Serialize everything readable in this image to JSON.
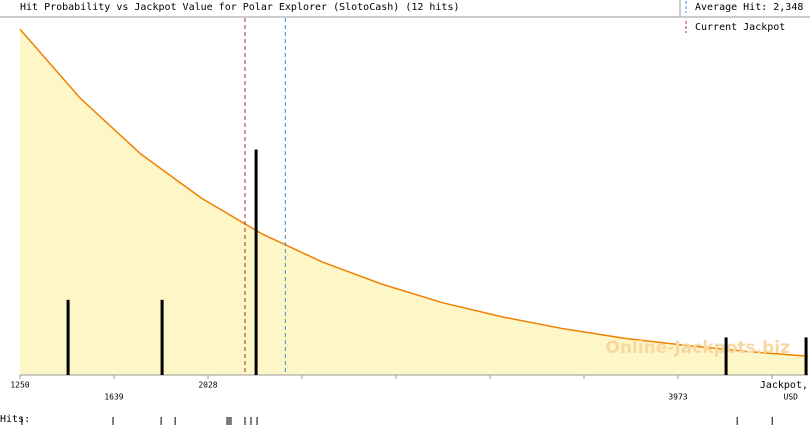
{
  "chart_data": {
    "type": "bar",
    "title": "Hit Probability vs Jackpot Value for Polar Explorer (SlotoCash) (12 hits)",
    "x": [
      1449,
      1838,
      2227,
      4172,
      4503
    ],
    "values": [
      2,
      2,
      6,
      1,
      1
    ],
    "color": "#000000",
    "xlim": [
      1250,
      4511
    ],
    "ylim": [
      0,
      9.5
    ],
    "xticks": [
      1250,
      1639,
      2028,
      3973
    ],
    "xticks_minor": [
      2417,
      2806,
      3195,
      3584,
      4362
    ],
    "x_label": [
      "Jackpot,",
      "USD"
    ],
    "curve": {
      "color": "#f08000",
      "fill": "#fdf6c6",
      "x": [
        1250,
        1500,
        1750,
        2000,
        2250,
        2500,
        2750,
        3000,
        3250,
        3500,
        3750,
        4000,
        4250,
        4511
      ],
      "values": [
        9.2,
        7.36,
        5.88,
        4.71,
        3.76,
        3.01,
        2.41,
        1.92,
        1.54,
        1.23,
        0.98,
        0.79,
        0.63,
        0.5
      ]
    },
    "average": {
      "label": "Average Hit: 2,348",
      "value": 2348,
      "color": "#3a8ad8"
    },
    "current": {
      "label": "Current Jackpot",
      "value": 2181,
      "color": "#a03030"
    },
    "hits_label": "Hits:",
    "hits": [
      1258,
      1635,
      1834,
      1892,
      2107,
      2115,
      2123,
      2181,
      2206,
      2231,
      4218,
      4363
    ],
    "watermark": "Online-Jackpots.biz"
  }
}
